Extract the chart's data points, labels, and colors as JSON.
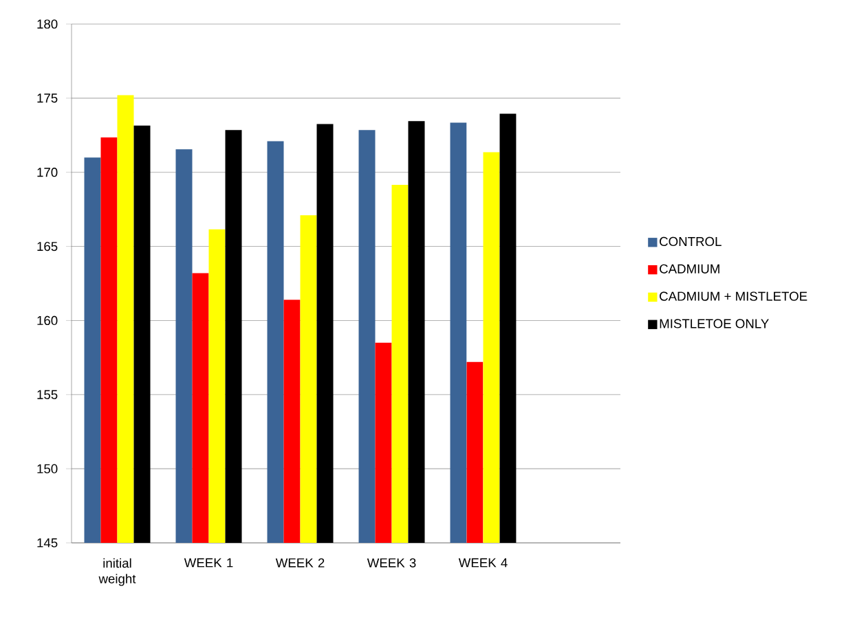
{
  "chart_data": {
    "type": "bar",
    "categories": [
      "initial weight",
      "WEEK 1",
      "WEEK 2",
      "WEEK 3",
      "WEEK 4",
      null
    ],
    "series": [
      {
        "name": "CONTROL",
        "color": "#3b6496",
        "values": [
          171.0,
          171.55,
          172.1,
          172.85,
          173.35,
          null
        ]
      },
      {
        "name": "CADMIUM",
        "color": "#ff0000",
        "values": [
          172.35,
          163.2,
          161.4,
          158.5,
          157.2,
          null
        ]
      },
      {
        "name": "CADMIUM + MISTLETOE",
        "color": "#ffff00",
        "values": [
          175.2,
          166.15,
          167.1,
          169.15,
          171.35,
          null
        ]
      },
      {
        "name": "MISTLETOE ONLY",
        "color": "#000000",
        "values": [
          173.15,
          172.85,
          173.25,
          173.45,
          173.95,
          null
        ]
      }
    ],
    "ylim": [
      145,
      180
    ],
    "yticks": [
      145,
      150,
      155,
      160,
      165,
      170,
      175,
      180
    ],
    "grid": "y",
    "legend": "right"
  }
}
